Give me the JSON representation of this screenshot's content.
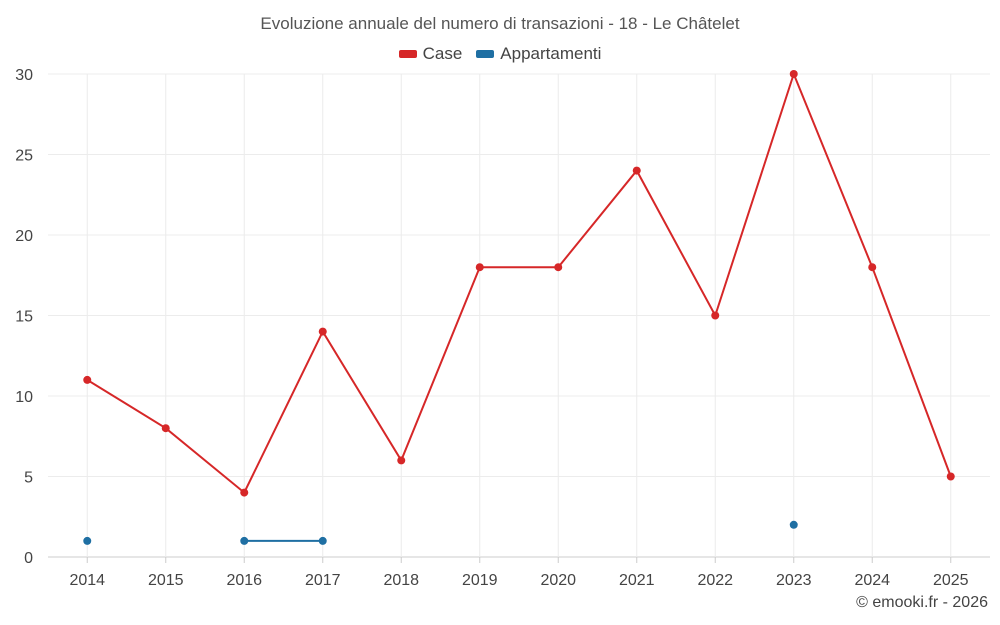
{
  "chart_data": {
    "type": "line",
    "title": "Evoluzione annuale del numero di transazioni - 18 - Le Châtelet",
    "categories": [
      "2014",
      "2015",
      "2016",
      "2017",
      "2018",
      "2019",
      "2020",
      "2021",
      "2022",
      "2023",
      "2024",
      "2025"
    ],
    "series": [
      {
        "name": "Case",
        "color": "#d62728",
        "values": [
          11,
          8,
          4,
          14,
          6,
          18,
          18,
          24,
          15,
          30,
          18,
          5
        ]
      },
      {
        "name": "Appartamenti",
        "color": "#1f6fa3",
        "values": [
          1,
          null,
          1,
          1,
          null,
          null,
          null,
          null,
          null,
          2,
          null,
          null
        ]
      }
    ],
    "ylim": [
      0,
      30
    ],
    "yticks": [
      0,
      5,
      10,
      15,
      20,
      25,
      30
    ],
    "xlabel": "",
    "ylabel": "",
    "grid": true,
    "legend": "top-center"
  },
  "credit": "© emooki.fr - 2026"
}
